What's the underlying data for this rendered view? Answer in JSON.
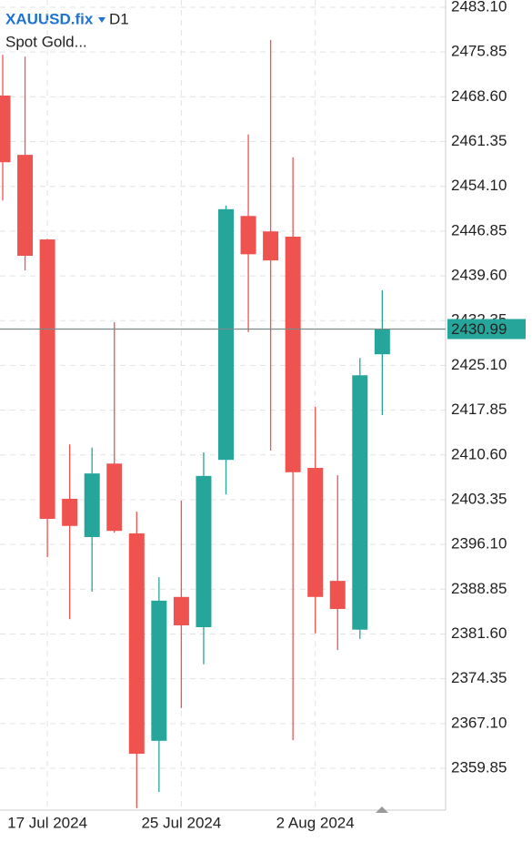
{
  "chart_data": {
    "type": "candlestick",
    "symbol": "XAUUSD.fix",
    "timeframe": "D1",
    "subtitle": "Spot Gold...",
    "categories": [
      null,
      null,
      "17 Jul 2024",
      null,
      null,
      null,
      null,
      null,
      "25 Jul 2024",
      null,
      null,
      null,
      null,
      null,
      "2 Aug 2024",
      null,
      null,
      null
    ],
    "open": [
      2468.8,
      2459.2,
      2445.5,
      2403.5,
      2397.3,
      2409.2,
      2397.9,
      2364.3,
      2387.6,
      2382.7,
      2409.8,
      2449.3,
      2446.8,
      2445.95,
      2408.5,
      2390.2,
      2382.3,
      2426.9
    ],
    "high": [
      2475.4,
      2475.1,
      2445.6,
      2412.3,
      2411.8,
      2432.1,
      2401.4,
      2390.8,
      2403.2,
      2411.0,
      2451.0,
      2462.5,
      2477.8,
      2458.8,
      2418.4,
      2407.3,
      2426.3,
      2437.25
    ],
    "low": [
      2451.8,
      2440.5,
      2394.05,
      2384.0,
      2388.45,
      2398.0,
      2353.4,
      2356.0,
      2369.6,
      2376.7,
      2404.2,
      2430.5,
      2411.3,
      2364.4,
      2381.7,
      2379.0,
      2380.8,
      2417.05
    ],
    "close": [
      2458.0,
      2442.85,
      2400.25,
      2399.1,
      2407.6,
      2398.3,
      2362.2,
      2387.0,
      2383.0,
      2407.2,
      2450.4,
      2443.1,
      2442.1,
      2407.8,
      2387.6,
      2385.65,
      2423.5,
      2430.99
    ],
    "up_color": "#26a69a",
    "down_color": "#ef5350",
    "current_price": 2430.99,
    "ylim": [
      2353.07,
      2484.28
    ],
    "yticks": [
      {
        "value": 2483.1,
        "label": "2483.10"
      },
      2475.85,
      {
        "value": 2468.6,
        "label": "2468.60"
      },
      2461.35,
      {
        "value": 2454.1,
        "label": "2454.10"
      },
      2446.85,
      {
        "value": 2439.6,
        "label": "2439.60"
      },
      2432.35,
      {
        "value": 2425.1,
        "label": "2425.10"
      },
      2417.85,
      {
        "value": 2410.6,
        "label": "2410.60"
      },
      2403.35,
      {
        "value": 2396.1,
        "label": "2396.10"
      },
      2388.85,
      {
        "value": 2381.6,
        "label": "2381.60"
      },
      2374.35,
      {
        "value": 2367.1,
        "label": "2367.10"
      },
      2359.85
    ],
    "grid": true
  }
}
